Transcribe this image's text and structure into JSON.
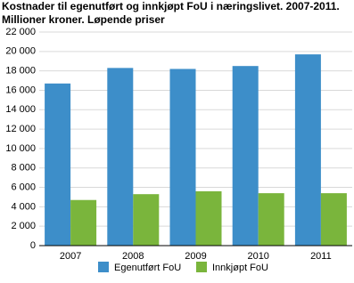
{
  "chart_data": {
    "type": "bar",
    "title": "Kostnader til egenutført og innkjøpt FoU i næringslivet. 2007-2011.",
    "subtitle": "Millioner kroner. Løpende priser",
    "categories": [
      "2007",
      "2008",
      "2009",
      "2010",
      "2011"
    ],
    "series": [
      {
        "name": "Egenutført FoU",
        "color": "#3d8ec9",
        "values": [
          16700,
          18300,
          18200,
          18500,
          19700
        ]
      },
      {
        "name": "Innkjøpt FoU",
        "color": "#7ab53c",
        "values": [
          4700,
          5300,
          5600,
          5400,
          5400
        ]
      }
    ],
    "ylim": [
      0,
      22000
    ],
    "yticks": [
      0,
      {
        "value": 2000,
        "label": "2 000"
      },
      {
        "value": 4000,
        "label": "4 000"
      },
      {
        "value": 6000,
        "label": "6 000"
      },
      {
        "value": 8000,
        "label": "8 000"
      },
      {
        "value": 10000,
        "label": "10 000"
      },
      {
        "value": 12000,
        "label": "12 000"
      },
      {
        "value": 14000,
        "label": "14 000"
      },
      {
        "value": 16000,
        "label": "16 000"
      },
      {
        "value": 18000,
        "label": "18 000"
      },
      {
        "value": 20000,
        "label": "20 000"
      },
      {
        "value": 22000,
        "label": "22 000"
      }
    ],
    "grid": true
  }
}
